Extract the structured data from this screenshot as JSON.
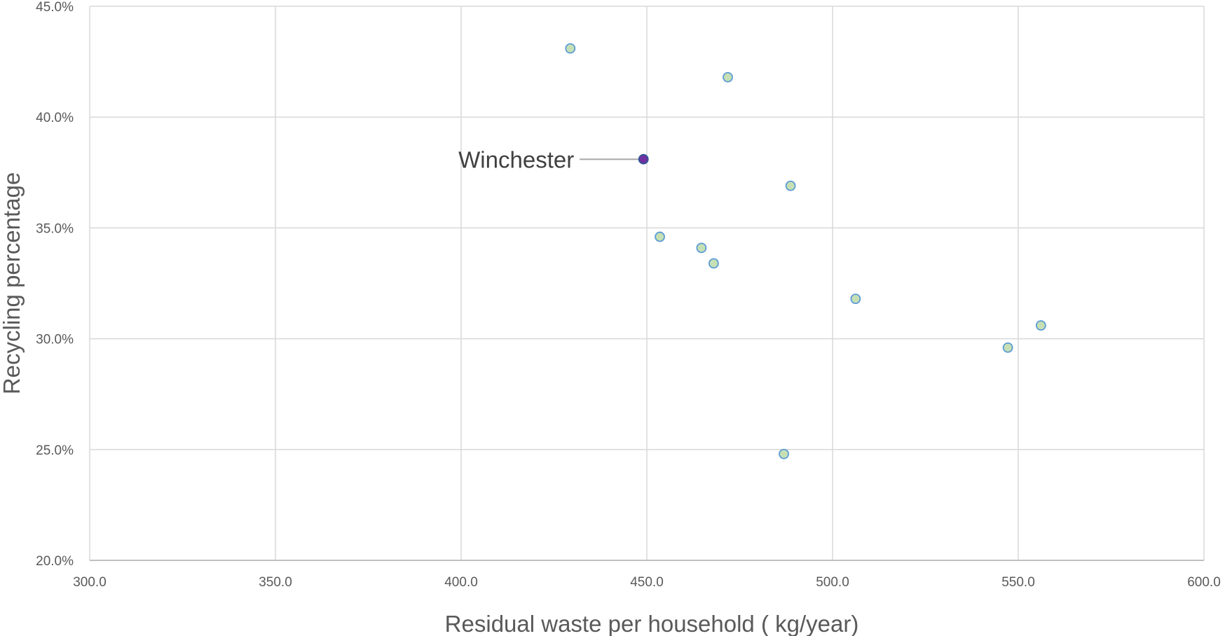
{
  "chart_data": {
    "type": "scatter",
    "title": "",
    "xlabel": "Residual waste per household ( kg/year)",
    "ylabel": "Recycling percentage",
    "xlim": [
      300,
      600
    ],
    "ylim": [
      20,
      45
    ],
    "x_ticks": [
      300,
      350,
      400,
      450,
      500,
      550,
      600
    ],
    "x_tick_labels": [
      "300.0",
      "350.0",
      "400.0",
      "450.0",
      "500.0",
      "550.0",
      "600.0"
    ],
    "y_ticks": [
      20,
      25,
      30,
      35,
      40,
      45
    ],
    "y_tick_labels": [
      "20.0%",
      "25.0%",
      "30.0%",
      "35.0%",
      "40.0%",
      "45.0%"
    ],
    "grid": true,
    "legend": "none",
    "series": [
      {
        "points": [
          {
            "x": 429.4,
            "y": 43.1
          },
          {
            "x": 471.8,
            "y": 41.8
          },
          {
            "x": 449.1,
            "y": 38.1,
            "label": "Winchester",
            "highlight": true
          },
          {
            "x": 488.7,
            "y": 36.9
          },
          {
            "x": 453.5,
            "y": 34.6
          },
          {
            "x": 464.7,
            "y": 34.1
          },
          {
            "x": 468.0,
            "y": 33.4
          },
          {
            "x": 506.2,
            "y": 31.8
          },
          {
            "x": 556.1,
            "y": 30.6
          },
          {
            "x": 547.2,
            "y": 29.6
          },
          {
            "x": 486.9,
            "y": 24.8
          }
        ]
      }
    ],
    "colors": {
      "point_fill": "#c6e0b4",
      "point_stroke": "#5b9bd5",
      "highlight_fill": "#7030a0",
      "highlight_stroke": "#2f5597",
      "grid": "#d9d9d9",
      "axis": "#bfbfbf",
      "leader_line": "#a6a6a6"
    }
  }
}
